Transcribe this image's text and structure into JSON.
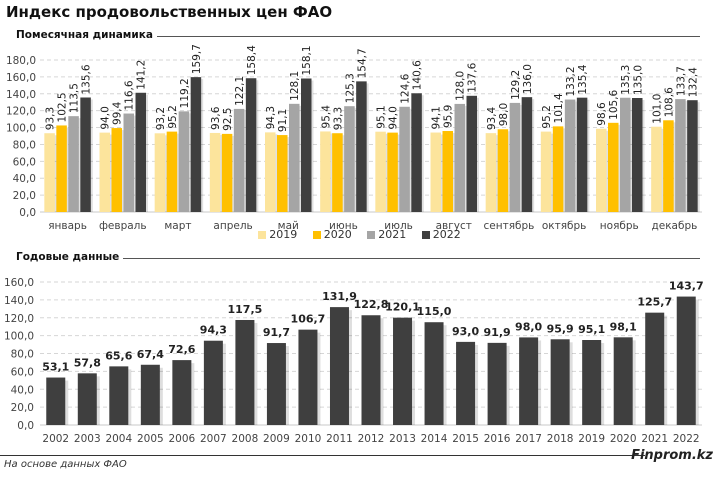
{
  "title": "Индекс продовольственных цен ФАО",
  "source": "На основе данных ФАО",
  "brand": "Finprom.kz",
  "chart_data": [
    {
      "type": "bar",
      "title": "Помесячная динамика",
      "categories": [
        "январь",
        "февраль",
        "март",
        "апрель",
        "май",
        "июнь",
        "июль",
        "август",
        "сентябрь",
        "октябрь",
        "ноябрь",
        "декабрь"
      ],
      "series": [
        {
          "name": "2019",
          "color": "#FCE49C",
          "values": [
            93.3,
            94.0,
            93.2,
            93.6,
            94.3,
            95.4,
            95.1,
            94.1,
            93.4,
            95.2,
            98.6,
            101.0
          ]
        },
        {
          "name": "2020",
          "color": "#FFC000",
          "values": [
            102.5,
            99.4,
            95.2,
            92.5,
            91.1,
            93.3,
            94.0,
            95.9,
            98.0,
            101.4,
            105.6,
            108.6
          ]
        },
        {
          "name": "2021",
          "color": "#A5A5A5",
          "values": [
            113.5,
            116.6,
            119.2,
            122.1,
            128.1,
            125.3,
            124.6,
            128.0,
            129.2,
            133.2,
            135.3,
            133.7
          ]
        },
        {
          "name": "2022",
          "color": "#3F3F3F",
          "values": [
            135.6,
            141.2,
            159.7,
            158.4,
            158.1,
            154.7,
            140.6,
            137.6,
            136.0,
            135.4,
            135.0,
            132.4
          ]
        }
      ],
      "yticks": [
        "0,0",
        "20,0",
        "40,0",
        "60,0",
        "80,0",
        "100,0",
        "120,0",
        "140,0",
        "160,0",
        "180,0"
      ],
      "ylim": [
        0,
        180
      ],
      "grid": true,
      "legend": "bottom"
    },
    {
      "type": "bar",
      "title": "Годовые данные",
      "categories": [
        "2002",
        "2003",
        "2004",
        "2005",
        "2006",
        "2007",
        "2008",
        "2009",
        "2010",
        "2011",
        "2012",
        "2013",
        "2014",
        "2015",
        "2016",
        "2017",
        "2018",
        "2019",
        "2020",
        "2021",
        "2022"
      ],
      "values": [
        53.1,
        57.8,
        65.6,
        67.4,
        72.6,
        94.3,
        117.5,
        91.7,
        106.7,
        131.9,
        122.8,
        120.1,
        115.0,
        93.0,
        91.9,
        98.0,
        95.9,
        95.1,
        98.1,
        125.7,
        143.7
      ],
      "labels": [
        "53,1",
        "57,8",
        "65,6",
        "67,4",
        "72,6",
        "94,3",
        "117,5",
        "91,7",
        "106,7",
        "131,9",
        "122,8",
        "120,1",
        "115,0",
        "93,0",
        "91,9",
        "98,0",
        "95,9",
        "95,1",
        "98,1",
        "125,7",
        "143,7"
      ],
      "color": "#3F3F3F",
      "yticks": [
        "0,0",
        "20,0",
        "40,0",
        "60,0",
        "80,0",
        "100,0",
        "120,0",
        "140,0",
        "160,0"
      ],
      "ylim": [
        0,
        160
      ],
      "grid": true
    }
  ]
}
